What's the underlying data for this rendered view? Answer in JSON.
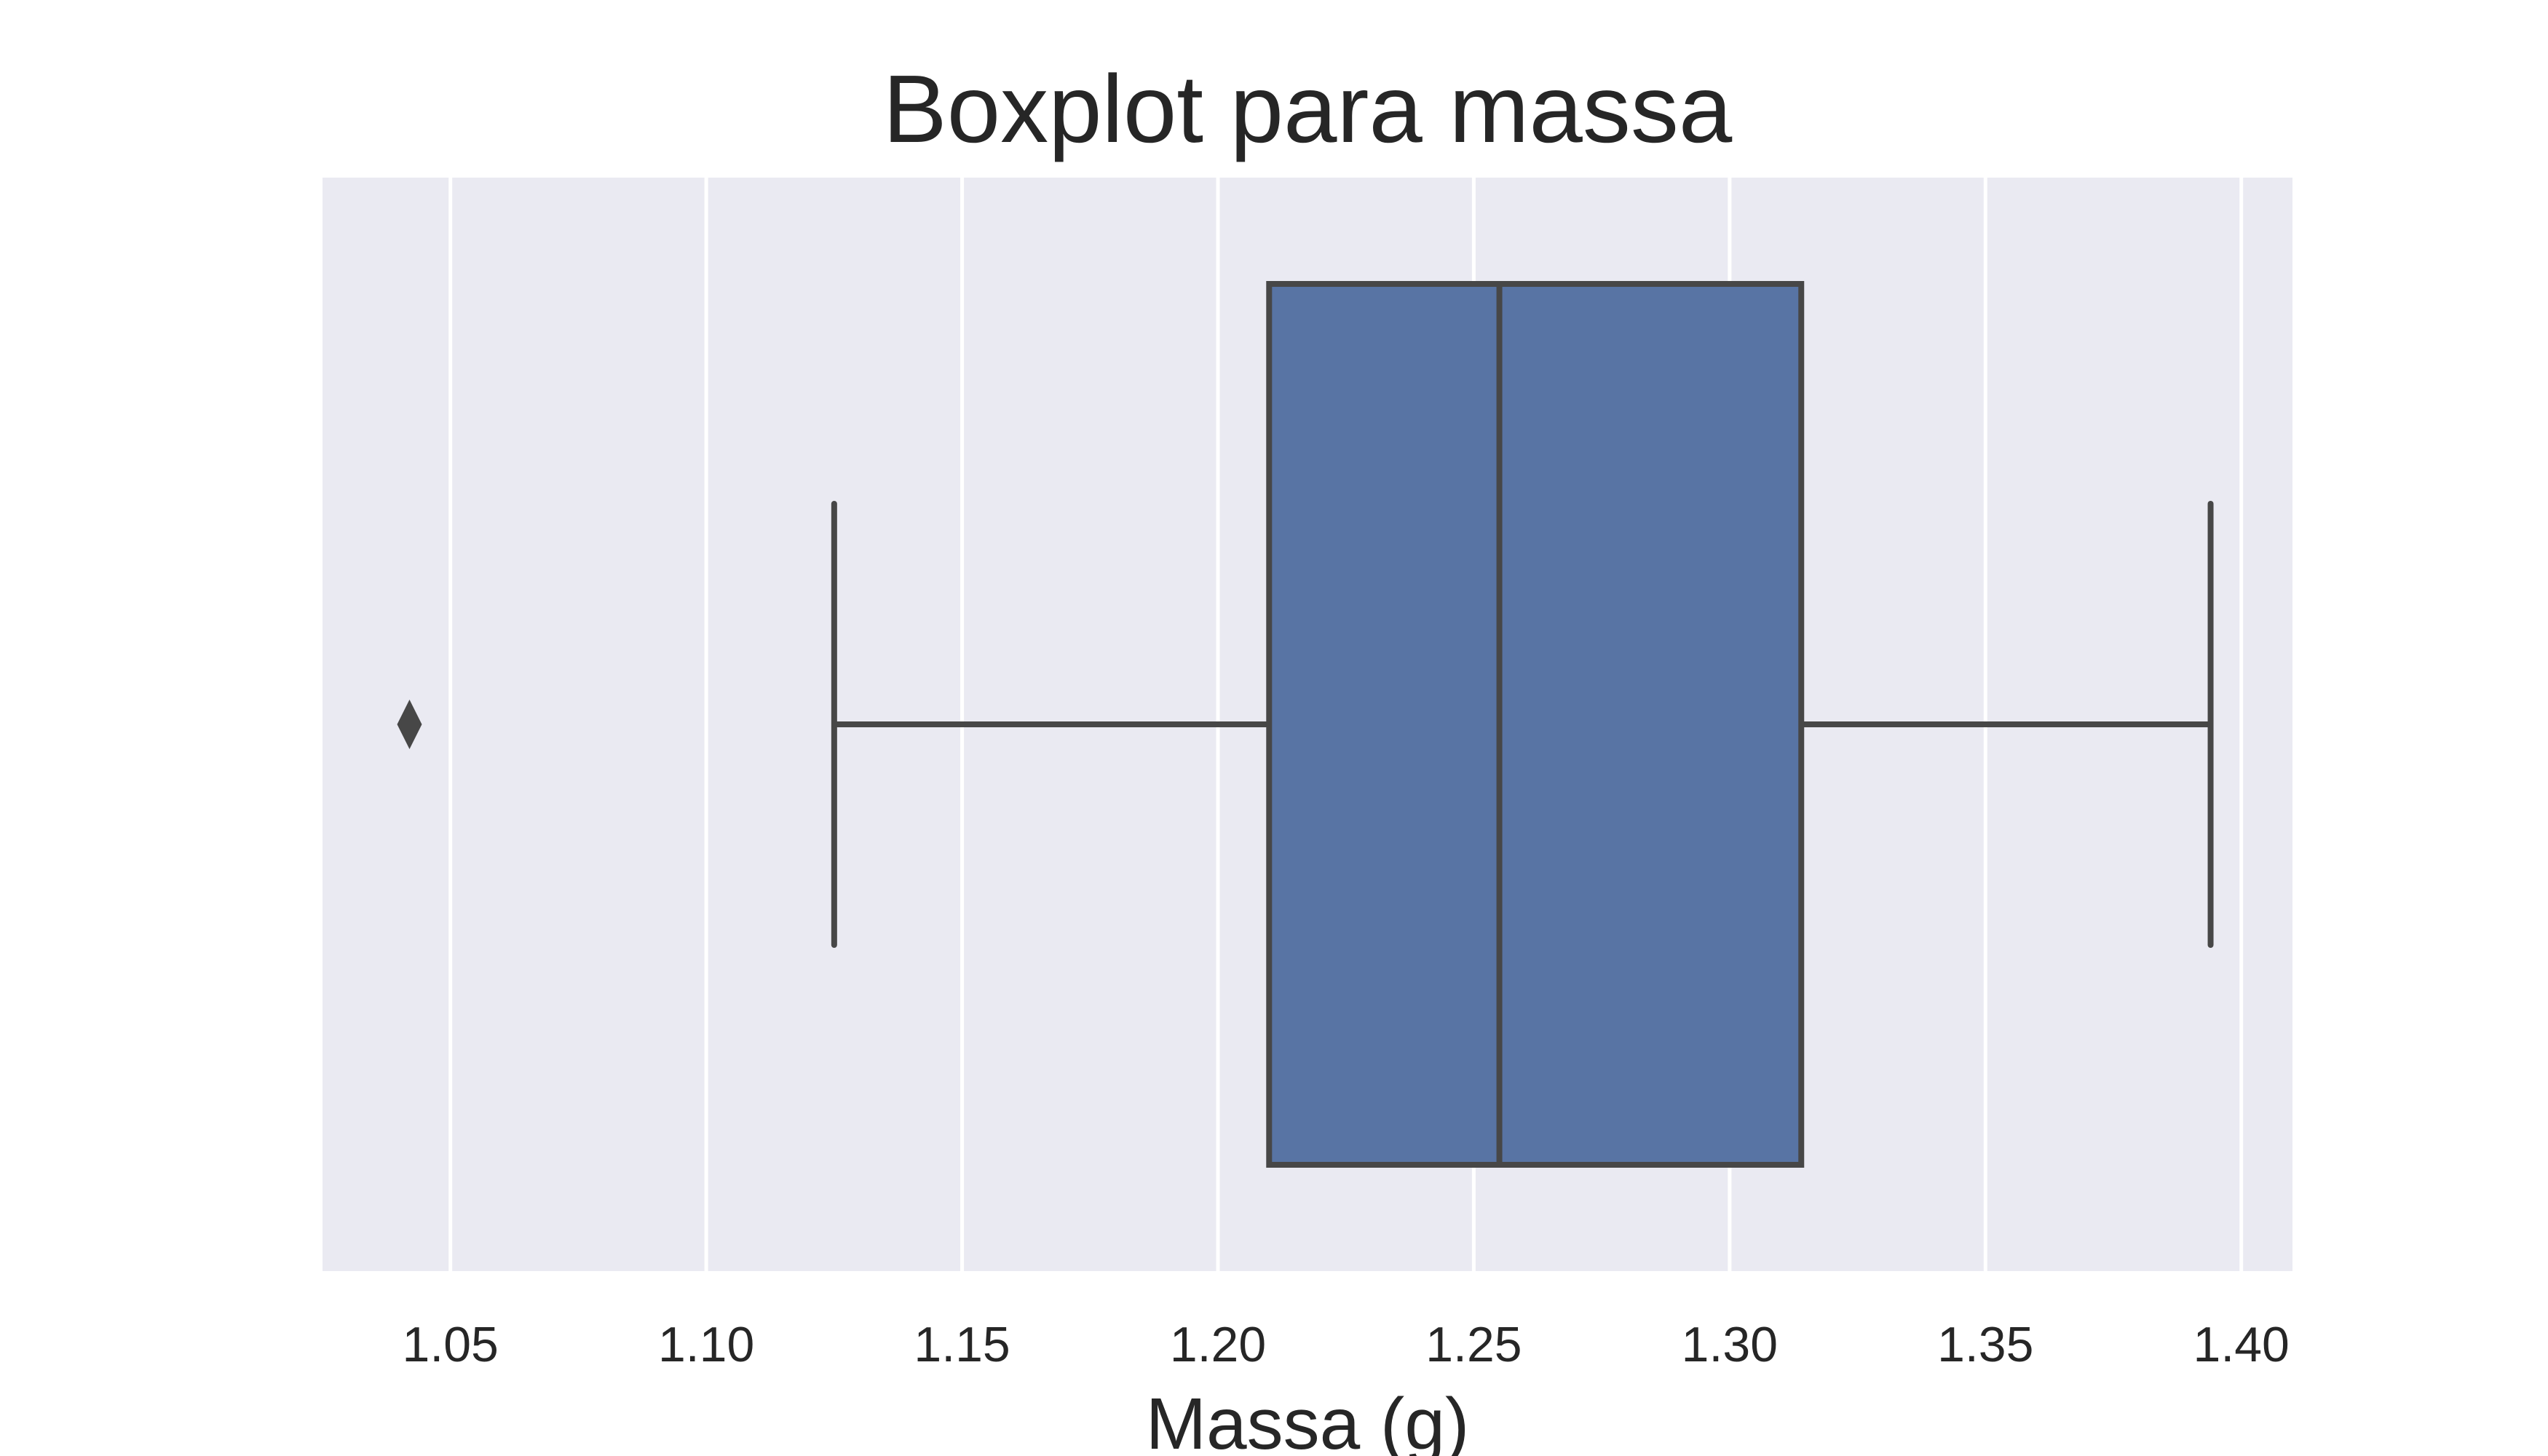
{
  "chart_data": {
    "type": "boxplot",
    "orientation": "horizontal",
    "title": "Boxplot para massa",
    "xlabel": "Massa (g)",
    "ylabel": "",
    "xlim": [
      1.025,
      1.41
    ],
    "xticks": [
      1.05,
      1.1,
      1.15,
      1.2,
      1.25,
      1.3,
      1.35,
      1.4
    ],
    "xtick_labels": [
      "1.05",
      "1.10",
      "1.15",
      "1.20",
      "1.25",
      "1.30",
      "1.35",
      "1.40"
    ],
    "grid": true,
    "box": {
      "whisker_low": 1.125,
      "q1": 1.21,
      "median": 1.255,
      "q3": 1.314,
      "whisker_high": 1.394,
      "outliers": [
        1.042
      ]
    },
    "colors": {
      "box_fill": "#5874a4",
      "lines": "#474747",
      "plot_background": "#eaeaf2",
      "grid": "#ffffff"
    }
  }
}
